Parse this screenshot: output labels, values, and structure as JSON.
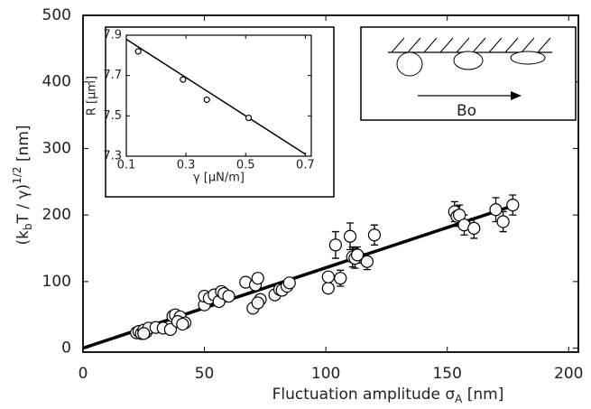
{
  "chart_data": [
    {
      "type": "scatter",
      "xlabel": [
        "Fluctuation amplitude σ",
        "A",
        " [nm]"
      ],
      "ylabel": [
        "(k",
        "b",
        "T / γ)",
        "1/2",
        "  [nm]"
      ],
      "xlim": [
        0,
        204
      ],
      "ylim": [
        -6,
        500
      ],
      "xticks": [
        0,
        50,
        100,
        150,
        200
      ],
      "yticks": [
        0,
        100,
        200,
        300,
        400,
        500
      ],
      "points": {
        "x": [
          22,
          23,
          24,
          25,
          26,
          27,
          25,
          30,
          33,
          36,
          37,
          38,
          40,
          39,
          42,
          41,
          50,
          50,
          52,
          54,
          56,
          57,
          58,
          60,
          67,
          70,
          71,
          72,
          73,
          72,
          79,
          81,
          82,
          84,
          85,
          101,
          101,
          104,
          106,
          110,
          111,
          112,
          113,
          117,
          120,
          153,
          154,
          155,
          157,
          161,
          170,
          173,
          177
        ],
        "y": [
          23,
          25,
          22,
          27,
          24,
          30,
          22,
          31,
          30,
          28,
          48,
          50,
          47,
          40,
          38,
          36,
          65,
          78,
          75,
          80,
          70,
          85,
          82,
          78,
          99,
          60,
          95,
          105,
          73,
          68,
          80,
          88,
          87,
          93,
          98,
          90,
          107,
          155,
          105,
          168,
          137,
          135,
          140,
          130,
          170,
          205,
          198,
          200,
          185,
          180,
          208,
          190,
          215
        ],
        "errors": [
          null,
          null,
          null,
          null,
          null,
          null,
          null,
          null,
          null,
          null,
          null,
          null,
          null,
          null,
          null,
          null,
          null,
          null,
          null,
          null,
          null,
          null,
          null,
          null,
          null,
          null,
          null,
          null,
          null,
          null,
          null,
          null,
          null,
          null,
          null,
          null,
          null,
          20,
          12,
          20,
          15,
          15,
          12,
          12,
          15,
          15,
          15,
          15,
          15,
          15,
          18,
          15,
          15
        ]
      },
      "fit": {
        "x": [
          0,
          178
        ],
        "y": [
          0,
          215
        ]
      }
    },
    {
      "type": "scatter",
      "xlabel": "γ [μN/m]",
      "ylabel": "R [μm]",
      "xlim": [
        0.1,
        0.72
      ],
      "ylim": [
        7.3,
        7.9
      ],
      "xticks": [
        0.1,
        0.3,
        0.5,
        0.7
      ],
      "yticks": [
        7.3,
        7.5,
        7.7,
        7.9
      ],
      "points": {
        "x": [
          0.14,
          0.29,
          0.37,
          0.51
        ],
        "y": [
          7.82,
          7.68,
          7.58,
          7.49
        ]
      },
      "fit": {
        "x": [
          0.1,
          0.7
        ],
        "y": [
          7.88,
          7.31
        ]
      }
    }
  ],
  "diagram_label": "Bo"
}
